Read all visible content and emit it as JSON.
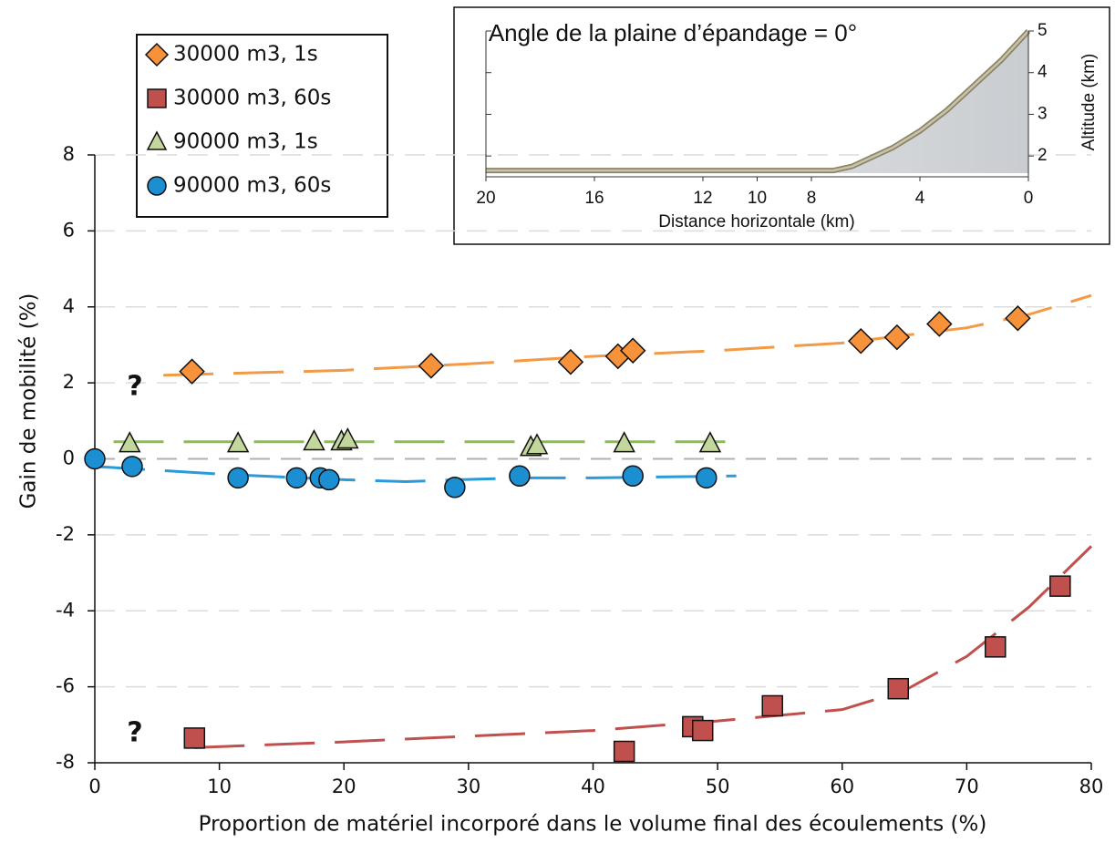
{
  "chart_data": [
    {
      "type": "scatter",
      "xlabel": "Proportion de matériel incorporé dans le volume final des écoulements (%)",
      "ylabel": "Gain de mobilité (%)",
      "xlim": [
        0,
        80
      ],
      "ylim": [
        -8,
        8
      ],
      "xticks": [
        0,
        10,
        20,
        30,
        40,
        50,
        60,
        70,
        80
      ],
      "yticks": [
        -8,
        -6,
        -4,
        -2,
        0,
        2,
        4,
        6,
        8
      ],
      "grid": true,
      "annotations": [
        "?",
        "?"
      ],
      "series": [
        {
          "name": "30000 m3, 1s",
          "color": "#f7923a",
          "marker": "diamond",
          "x": [
            7.8,
            27,
            38.2,
            42,
            43.2,
            61.5,
            64.4,
            67.8,
            74.1
          ],
          "values": [
            2.3,
            2.45,
            2.55,
            2.7,
            2.85,
            3.1,
            3.2,
            3.55,
            3.7
          ],
          "trend": {
            "color": "#f39a46",
            "x": [
              5.5,
              20,
              30,
              40,
              50,
              60,
              70,
              75,
              80
            ],
            "values": [
              2.2,
              2.33,
              2.5,
              2.7,
              2.85,
              3.05,
              3.45,
              3.8,
              4.3
            ]
          }
        },
        {
          "name": "30000 m3, 60s",
          "color": "#c0504d",
          "marker": "square",
          "x": [
            8,
            42.5,
            48,
            48.8,
            54.4,
            64.5,
            72.3,
            77.5
          ],
          "values": [
            -7.35,
            -7.7,
            -7.05,
            -7.15,
            -6.5,
            -6.05,
            -4.95,
            -3.35
          ],
          "trend": {
            "color": "#c0504d",
            "x": [
              8,
              20,
              30,
              40,
              50,
              60,
              65,
              70,
              75,
              80
            ],
            "values": [
              -7.6,
              -7.45,
              -7.3,
              -7.15,
              -6.9,
              -6.6,
              -6.1,
              -5.2,
              -3.9,
              -2.3
            ]
          }
        },
        {
          "name": "90000 m3, 1s",
          "color": "#c3d69b",
          "marker": "triangle",
          "x": [
            2.8,
            11.5,
            17.6,
            19.8,
            20.3,
            35,
            35.5,
            42.5,
            49.4
          ],
          "values": [
            0.4,
            0.4,
            0.45,
            0.45,
            0.5,
            0.3,
            0.35,
            0.4,
            0.4
          ],
          "trend": {
            "color": "#8bbd4c",
            "x": [
              1.5,
              51.5
            ],
            "values": [
              0.45,
              0.45
            ]
          }
        },
        {
          "name": "90000 m3, 60s",
          "color": "#1b8fd2",
          "marker": "circle",
          "x": [
            0,
            3,
            11.5,
            16.2,
            18.1,
            18.8,
            28.9,
            34.1,
            43.2,
            49.1
          ],
          "values": [
            0,
            -0.2,
            -0.5,
            -0.5,
            -0.5,
            -0.55,
            -0.75,
            -0.45,
            -0.45,
            -0.5
          ],
          "trend": {
            "color": "#2b9ad8",
            "x": [
              0,
              10,
              20,
              25,
              28.9,
              35,
              40,
              51.5
            ],
            "values": [
              -0.2,
              -0.4,
              -0.55,
              -0.6,
              -0.55,
              -0.5,
              -0.5,
              -0.45
            ]
          }
        }
      ]
    },
    {
      "type": "area",
      "title": "Angle de la plaine d’épandage = 0°",
      "xlabel": "Distance horizontale (km)",
      "ylabel": "Altitude (km)",
      "xlim": [
        20,
        0
      ],
      "ylim": [
        1.5,
        5
      ],
      "xticks": [
        20,
        16,
        12,
        10,
        8,
        4,
        0
      ],
      "yticks": [
        2,
        3,
        4,
        5
      ],
      "x": [
        20,
        7.2,
        6.5,
        5,
        4,
        3,
        2,
        1,
        0
      ],
      "values": [
        1.65,
        1.65,
        1.75,
        2.2,
        2.6,
        3.1,
        3.7,
        4.3,
        5
      ],
      "color": "#d5d8dc"
    }
  ]
}
